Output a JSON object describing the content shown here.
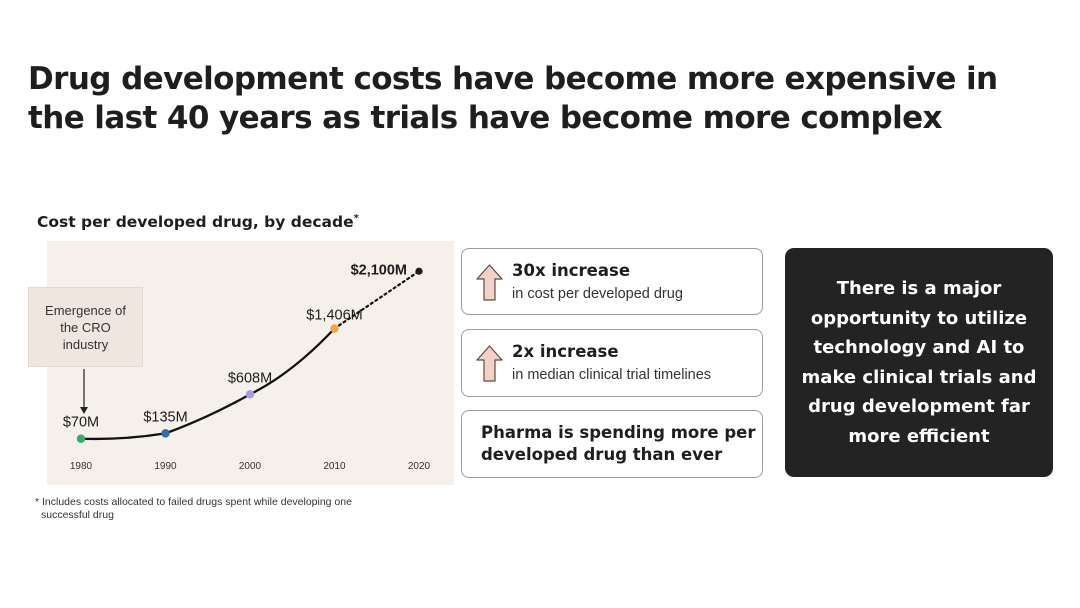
{
  "headline": "Drug development costs have become more expensive in the last 40 years as trials have become more complex",
  "chart_data": {
    "type": "line",
    "title": "Cost per developed drug, by decade",
    "title_marker": "*",
    "x": [
      1980,
      1990,
      2000,
      2010,
      2020
    ],
    "y": [
      70,
      135,
      608,
      1406,
      2100
    ],
    "y_unit": "$M",
    "point_labels": [
      "$70M",
      "$135M",
      "$608M",
      "$1,406M",
      "$2,100M"
    ],
    "tick_labels": [
      "1980",
      "1990",
      "2000",
      "2010",
      "2020"
    ],
    "point_colors": [
      "#2fae6e",
      "#2f6fa6",
      "#a79be6",
      "#f0a44a",
      "#1c1c1c"
    ],
    "line_style": [
      "solid",
      "solid",
      "solid",
      "dotted"
    ],
    "background": "#f6f0ea",
    "grid": false,
    "annotation": {
      "text": "Emergence of the CRO industry",
      "points_to": 1980
    }
  },
  "footnote": {
    "line1": "* Includes costs allocated to failed drugs spent while developing one",
    "line2": "successful drug"
  },
  "stats": [
    {
      "headline": "30x increase",
      "subtext": "in cost per developed drug",
      "icon": "up-arrow-icon"
    },
    {
      "headline": "2x increase",
      "subtext": "in median clinical trial timelines",
      "icon": "up-arrow-icon"
    },
    {
      "headline": "Pharma is spending more per developed drug than ever"
    }
  ],
  "colors": {
    "arrow_fill": "#f3d2c5",
    "arrow_stroke": "#5a4a44",
    "callout_bg": "#232323",
    "card_border": "#9c9c9c"
  },
  "callout": "There is a major opportunity to utilize technology and AI to make clinical trials and drug development far more efficient"
}
